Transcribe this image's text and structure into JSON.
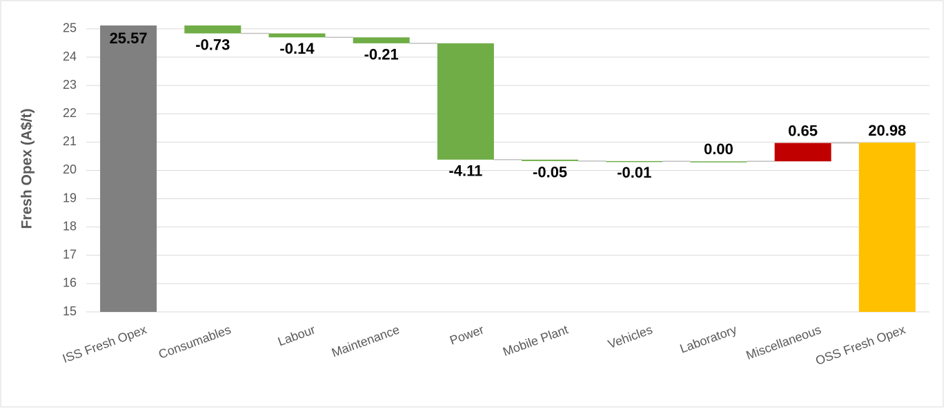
{
  "chart_data": {
    "type": "waterfall",
    "y_axis_label": "Fresh Opex (A$/t)",
    "categories": [
      "ISS Fresh Opex",
      "Consumables",
      "Labour",
      "Maintenance",
      "Power",
      "Mobile Plant",
      "Vehicles",
      "Laboratory",
      "Miscellaneous",
      "OSS Fresh Opex"
    ],
    "values": [
      25.57,
      -0.73,
      -0.14,
      -0.21,
      -4.11,
      -0.05,
      -0.01,
      0.0,
      0.65,
      20.98
    ],
    "value_labels": [
      "25.57",
      "-0.73",
      "-0.14",
      "-0.21",
      "-4.11",
      "-0.05",
      "-0.01",
      "0.00",
      "0.65",
      "20.98"
    ],
    "measure": [
      "total",
      "relative",
      "relative",
      "relative",
      "relative",
      "relative",
      "relative",
      "relative",
      "relative",
      "total"
    ],
    "colors": [
      "#808080",
      "#70ad47",
      "#70ad47",
      "#70ad47",
      "#70ad47",
      "#70ad47",
      "#70ad47",
      "#70ad47",
      "#c00000",
      "#ffc000"
    ],
    "ylim": [
      15,
      25.12
    ],
    "yticks": [
      15,
      16,
      17,
      18,
      19,
      20,
      21,
      22,
      23,
      24,
      25
    ],
    "grid": true
  }
}
